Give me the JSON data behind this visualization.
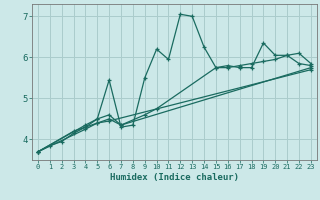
{
  "xlabel": "Humidex (Indice chaleur)",
  "background_color": "#cce8e8",
  "grid_color": "#aacccc",
  "line_color": "#1a6b60",
  "xlim": [
    -0.5,
    23.5
  ],
  "ylim": [
    3.5,
    7.3
  ],
  "yticks": [
    4,
    5,
    6,
    7
  ],
  "xticks": [
    0,
    1,
    2,
    3,
    4,
    5,
    6,
    7,
    8,
    9,
    10,
    11,
    12,
    13,
    14,
    15,
    16,
    17,
    18,
    19,
    20,
    21,
    22,
    23
  ],
  "series": [
    {
      "x": [
        0,
        1,
        2,
        3,
        4,
        5,
        6,
        7,
        8,
        9,
        10,
        11,
        12,
        13,
        14,
        15,
        16,
        17,
        18,
        19,
        20,
        21,
        22,
        23
      ],
      "y": [
        3.7,
        3.85,
        3.95,
        4.15,
        4.3,
        4.5,
        5.45,
        4.3,
        4.35,
        5.5,
        6.2,
        5.95,
        7.05,
        7.0,
        6.25,
        5.75,
        5.8,
        5.75,
        5.75,
        6.35,
        6.05,
        6.05,
        5.85,
        5.8
      ]
    },
    {
      "x": [
        0,
        3,
        4,
        5,
        6,
        7,
        9,
        10,
        15,
        16,
        17,
        18,
        19,
        20,
        21,
        22,
        23
      ],
      "y": [
        3.7,
        4.2,
        4.3,
        4.4,
        4.5,
        4.35,
        4.6,
        4.75,
        5.75,
        5.75,
        5.8,
        5.85,
        5.9,
        5.95,
        6.05,
        6.1,
        5.85
      ]
    },
    {
      "x": [
        0,
        4,
        5,
        6,
        7,
        23
      ],
      "y": [
        3.7,
        4.35,
        4.5,
        4.6,
        4.35,
        5.75
      ]
    },
    {
      "x": [
        0,
        4,
        5,
        6,
        23
      ],
      "y": [
        3.7,
        4.25,
        4.4,
        4.45,
        5.7
      ]
    }
  ]
}
